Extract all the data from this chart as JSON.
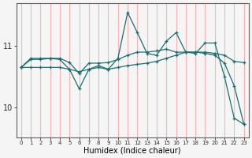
{
  "xlabel": "Humidex (Indice chaleur)",
  "background_color": "#f5f5f5",
  "grid_color": "#ffb0b0",
  "line_color": "#1a7070",
  "x_values": [
    0,
    1,
    2,
    3,
    4,
    5,
    6,
    7,
    8,
    9,
    10,
    11,
    12,
    13,
    14,
    15,
    16,
    17,
    18,
    19,
    20,
    21,
    22,
    23
  ],
  "line1": [
    10.65,
    10.8,
    10.8,
    10.8,
    10.8,
    10.73,
    10.55,
    10.72,
    10.72,
    10.73,
    10.78,
    10.85,
    10.9,
    10.9,
    10.92,
    10.95,
    10.9,
    10.9,
    10.9,
    10.9,
    10.88,
    10.85,
    10.75,
    10.73
  ],
  "line2": [
    10.65,
    10.78,
    10.78,
    10.8,
    10.78,
    10.62,
    10.3,
    10.62,
    10.68,
    10.62,
    10.8,
    11.55,
    11.22,
    10.88,
    10.85,
    11.08,
    11.22,
    10.9,
    10.88,
    11.05,
    11.05,
    10.5,
    9.82,
    9.72
  ],
  "line3": [
    10.65,
    10.65,
    10.65,
    10.65,
    10.65,
    10.62,
    10.58,
    10.62,
    10.65,
    10.62,
    10.65,
    10.68,
    10.7,
    10.72,
    10.75,
    10.8,
    10.85,
    10.9,
    10.9,
    10.88,
    10.85,
    10.72,
    10.35,
    9.72
  ],
  "yticks": [
    10,
    11
  ],
  "ylim": [
    9.5,
    11.7
  ],
  "xlim": [
    -0.5,
    23.5
  ],
  "xlabel_fontsize": 7,
  "ytick_fontsize": 7,
  "xtick_fontsize": 5
}
